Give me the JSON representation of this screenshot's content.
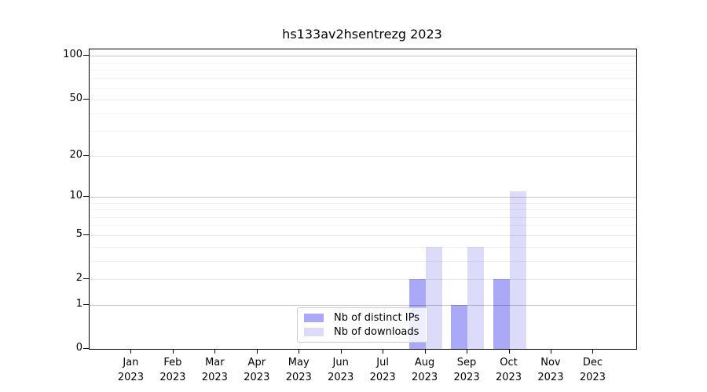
{
  "chart_data": {
    "type": "bar",
    "title": "hs133av2hsentrezg 2023",
    "year_label": "2023",
    "categories": [
      "Jan",
      "Feb",
      "Mar",
      "Apr",
      "May",
      "Jun",
      "Jul",
      "Aug",
      "Sep",
      "Oct",
      "Nov",
      "Dec"
    ],
    "series": [
      {
        "name": "Nb of distinct IPs",
        "color": "#a9a9f8",
        "values": [
          0,
          0,
          0,
          0,
          0,
          0,
          0,
          2,
          1,
          2,
          0,
          0
        ]
      },
      {
        "name": "Nb of downloads",
        "color": "#dcdcfa",
        "values": [
          0,
          0,
          0,
          0,
          0,
          0,
          0,
          4,
          4,
          11,
          0,
          0
        ]
      }
    ],
    "xlabel": "",
    "ylabel": "",
    "y_scale": "log10(1+v)",
    "y_ticks": [
      100,
      50,
      20,
      10,
      5,
      2,
      1,
      0
    ],
    "y_decade_gridlines": [
      1,
      10,
      100
    ],
    "y_minor_gridlines": [
      3,
      4,
      6,
      7,
      8,
      9,
      30,
      40,
      60,
      70,
      80,
      90
    ],
    "ylim": [
      0,
      120
    ],
    "grid": true,
    "legend_position": "lower center",
    "background_color": "#ffffff",
    "gridline_color": "#c6c6c6"
  }
}
